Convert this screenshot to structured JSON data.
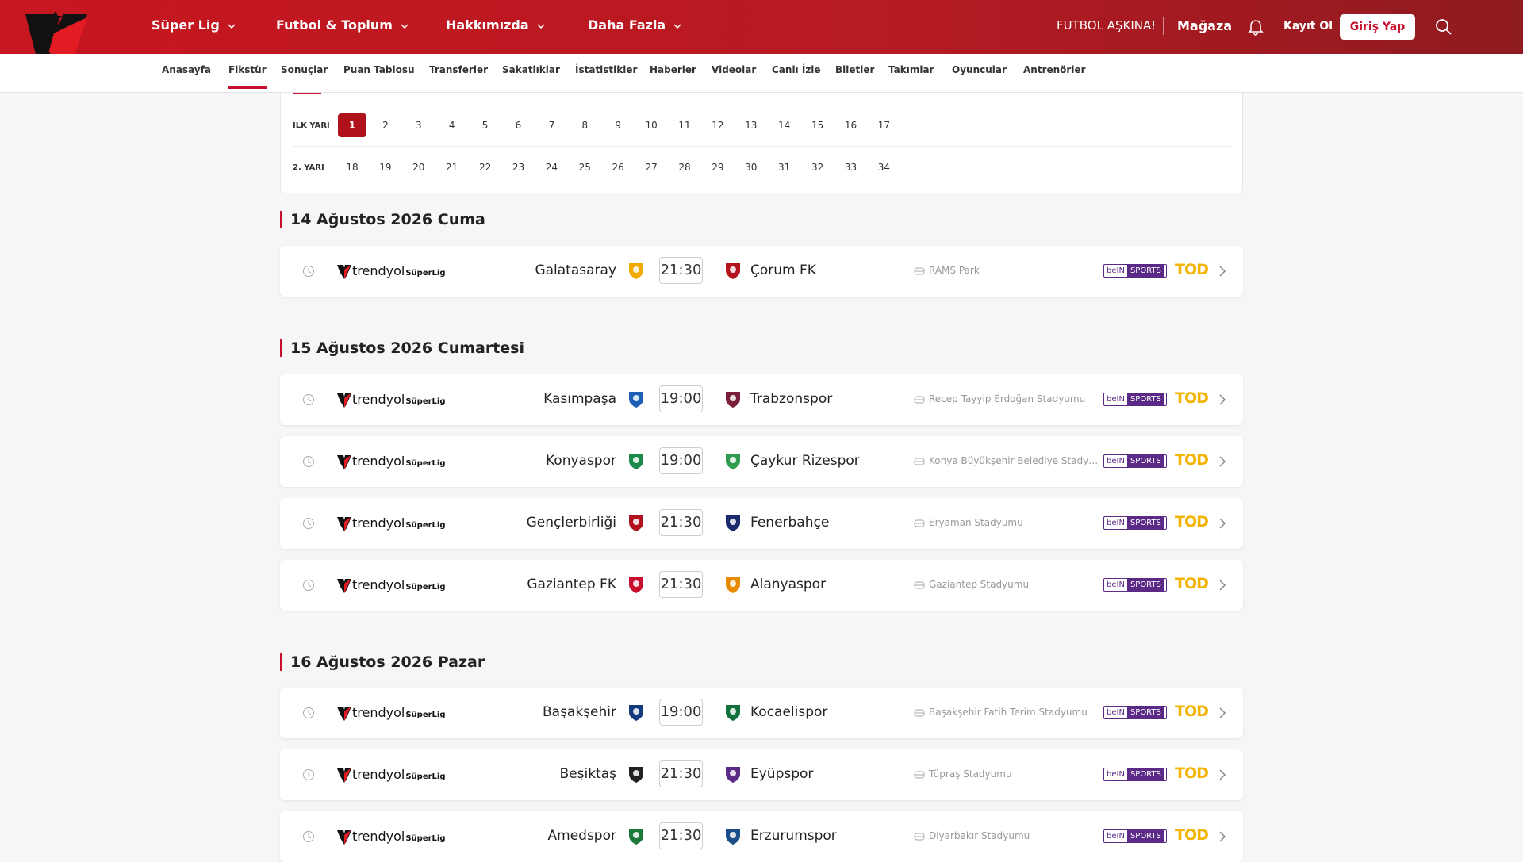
{
  "header": {
    "nav": [
      "Süper Lig",
      "Futbol & Toplum",
      "Hakkımızda",
      "Daha Fazla"
    ],
    "slogan": "FUTBOL AŞKINA!",
    "store": "Mağaza",
    "register": "Kayıt Ol",
    "login": "Giriş Yap"
  },
  "subnav": [
    "Anasayfa",
    "Fikstür",
    "Sonuçlar",
    "Puan Tablosu",
    "Transferler",
    "Sakatlıklar",
    "İstatistikler",
    "Haberler",
    "Videolar",
    "Canlı İzle",
    "Biletler",
    "Takımlar",
    "Oyuncular",
    "Antrenörler"
  ],
  "weeks": {
    "first_label": "İLK YARI",
    "first": [
      1,
      2,
      3,
      4,
      5,
      6,
      7,
      8,
      9,
      10,
      11,
      12,
      13,
      14,
      15,
      16,
      17
    ],
    "second_label": "2. YARI",
    "second": [
      18,
      19,
      20,
      21,
      22,
      23,
      24,
      25,
      26,
      27,
      28,
      29,
      30,
      31,
      32,
      33,
      34
    ]
  },
  "league": {
    "brand": "trendyol",
    "name": "SüperLig"
  },
  "broadcast": {
    "bein": "beIN",
    "sports": "SPORTS",
    "tod": "TOD"
  },
  "days": [
    {
      "date": "14 Ağustos 2026 Cuma",
      "matches": [
        {
          "home": "Galatasaray",
          "home_color": "#f2a900",
          "time": "21:30",
          "away": "Çorum FK",
          "away_color": "#b3121f",
          "stadium": "RAMS Park"
        }
      ]
    },
    {
      "date": "15 Ağustos 2026 Cumartesi",
      "matches": [
        {
          "home": "Kasımpaşa",
          "home_color": "#1f5fb4",
          "time": "19:00",
          "away": "Trabzonspor",
          "away_color": "#7a1e3a",
          "stadium": "Recep Tayyip Erdoğan Stadyumu"
        },
        {
          "home": "Konyaspor",
          "home_color": "#1c8a4a",
          "time": "19:00",
          "away": "Çaykur Rizespor",
          "away_color": "#2e9b4f",
          "stadium": "Konya Büyükşehir Belediye Stady…"
        },
        {
          "home": "Gençlerbirliği",
          "home_color": "#b0121c",
          "time": "21:30",
          "away": "Fenerbahçe",
          "away_color": "#1a2a6c",
          "stadium": "Eryaman Stadyumu"
        },
        {
          "home": "Gaziantep FK",
          "home_color": "#c8102e",
          "time": "21:30",
          "away": "Alanyaspor",
          "away_color": "#e68a00",
          "stadium": "Gaziantep Stadyumu"
        }
      ]
    },
    {
      "date": "16 Ağustos 2026 Pazar",
      "matches": [
        {
          "home": "Başakşehir",
          "home_color": "#133a7a",
          "time": "19:00",
          "away": "Kocaelispor",
          "away_color": "#12703d",
          "stadium": "Başakşehir Fatih Terim Stadyumu"
        },
        {
          "home": "Beşiktaş",
          "home_color": "#222222",
          "time": "21:30",
          "away": "Eyüpspor",
          "away_color": "#5b2a86",
          "stadium": "Tüpraş Stadyumu"
        },
        {
          "home": "Amedspor",
          "home_color": "#1b7a3a",
          "time": "21:30",
          "away": "Erzurumspor",
          "away_color": "#1c4f8a",
          "stadium": "Diyarbakır Stadyumu"
        }
      ]
    }
  ]
}
